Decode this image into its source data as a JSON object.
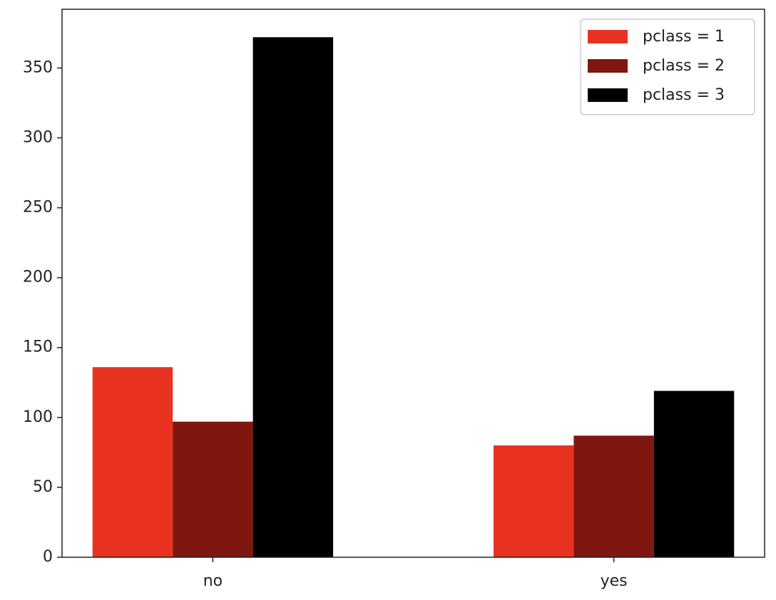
{
  "chart_data": {
    "type": "bar",
    "categories": [
      "no",
      "yes"
    ],
    "series": [
      {
        "name": "pclass = 1",
        "color": "#e8321f",
        "values": [
          136,
          80
        ]
      },
      {
        "name": "pclass = 2",
        "color": "#7f1710",
        "values": [
          97,
          87
        ]
      },
      {
        "name": "pclass = 3",
        "color": "#000000",
        "values": [
          372,
          119
        ]
      }
    ],
    "ylim": [
      0,
      392
    ],
    "yticks": [
      0,
      50,
      100,
      150,
      200,
      250,
      300,
      350
    ],
    "legend": "upper right",
    "grid": false
  }
}
